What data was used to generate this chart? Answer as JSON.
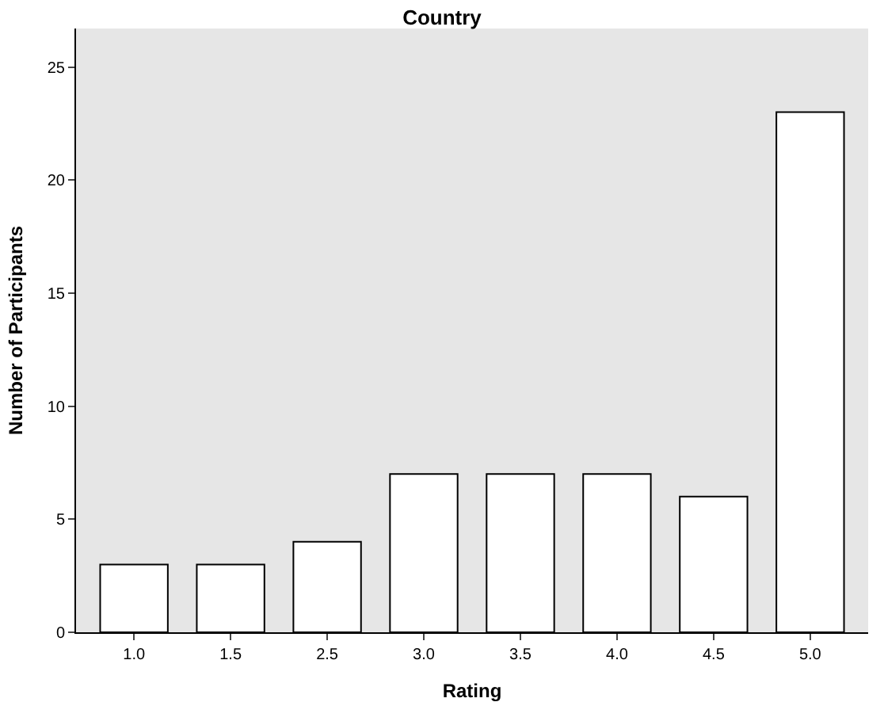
{
  "chart_data": {
    "type": "bar",
    "title": "Country",
    "xlabel": "Rating",
    "ylabel": "Number of Participants",
    "categories": [
      "1.0",
      "1.5",
      "2.5",
      "3.0",
      "3.5",
      "4.0",
      "4.5",
      "5.0"
    ],
    "values": [
      3,
      3,
      4,
      7,
      7,
      7,
      6,
      23
    ],
    "color": "#ffffff",
    "ylim": [
      0,
      26.7
    ],
    "yticks": [
      0,
      5,
      10,
      15,
      20,
      25
    ],
    "grid": false
  }
}
